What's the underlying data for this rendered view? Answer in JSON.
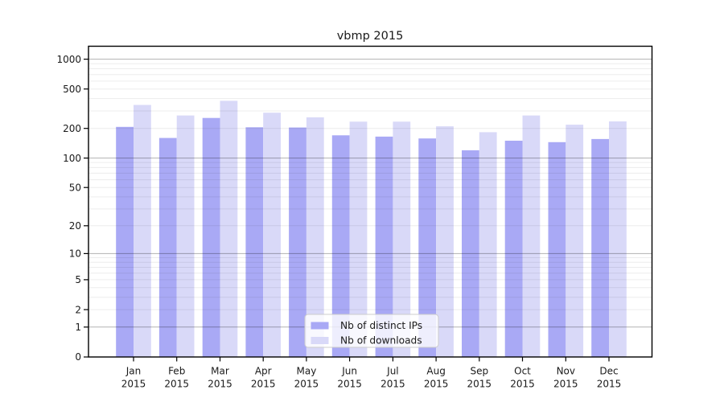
{
  "chart_data": {
    "type": "bar",
    "title": "vbmp 2015",
    "year_label": "2015",
    "categories": [
      "Jan",
      "Feb",
      "Mar",
      "Apr",
      "May",
      "Jun",
      "Jul",
      "Aug",
      "Sep",
      "Oct",
      "Nov",
      "Dec"
    ],
    "series": [
      {
        "name": "Nb of distinct IPs",
        "color": "#a9a9f5",
        "values": [
          207,
          160,
          255,
          205,
          204,
          170,
          165,
          158,
          120,
          150,
          145,
          156
        ]
      },
      {
        "name": "Nb of downloads",
        "color": "#d9d9f8",
        "values": [
          345,
          270,
          380,
          288,
          259,
          234,
          234,
          210,
          183,
          270,
          218,
          235
        ]
      }
    ],
    "yscale": "symlog",
    "yticks": [
      0,
      1,
      2,
      5,
      10,
      20,
      50,
      100,
      200,
      500,
      1000
    ],
    "ylim": [
      0,
      1350
    ],
    "grid": "on",
    "legend_position": "bottom-center",
    "colors": {
      "major_grid": "rgba(0,0,0,0.30)",
      "minor_grid": "rgba(0,0,0,0.075)",
      "spine": "#000000",
      "legend_border": "#cccccc",
      "legend_bg": "rgba(255,255,255,0.8)"
    }
  }
}
